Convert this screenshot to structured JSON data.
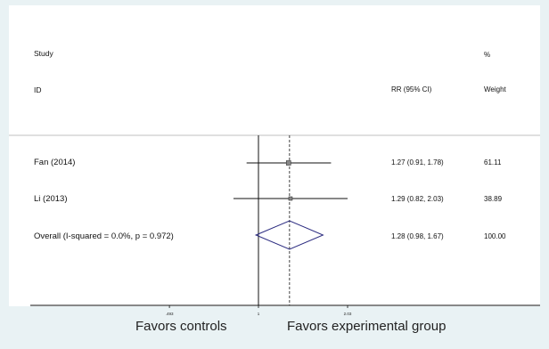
{
  "header": {
    "study_label": "Study",
    "id_label": "ID",
    "rr_label": "RR (95% CI)",
    "pct_label": "%",
    "weight_label": "Weight"
  },
  "chart_data": {
    "type": "forest",
    "x_scale": "log",
    "null_line": 1,
    "overall_line": 1.28,
    "x_ticks": [
      ".493",
      "1",
      "2.03"
    ],
    "x_tick_values": [
      0.493,
      1,
      2.03
    ],
    "studies": [
      {
        "label": "Fan  (2014)",
        "rr": 1.27,
        "lower": 0.91,
        "upper": 1.78,
        "ci_text": "1.27 (0.91, 1.78)",
        "weight": "61.11"
      },
      {
        "label": "Li  (2013)",
        "rr": 1.29,
        "lower": 0.82,
        "upper": 2.03,
        "ci_text": "1.29 (0.82, 2.03)",
        "weight": "38.89"
      }
    ],
    "overall": {
      "label": "Overall  (I-squared = 0.0%, p = 0.972)",
      "rr": 1.28,
      "lower": 0.98,
      "upper": 1.67,
      "ci_text": "1.28 (0.98, 1.67)",
      "weight": "100.00"
    },
    "favors_left": "Favors controls",
    "favors_right": "Favors experimental group"
  },
  "style": {
    "line_color": "#111111",
    "diamond_color": "#2b2b80",
    "background": "#e9f2f4"
  }
}
